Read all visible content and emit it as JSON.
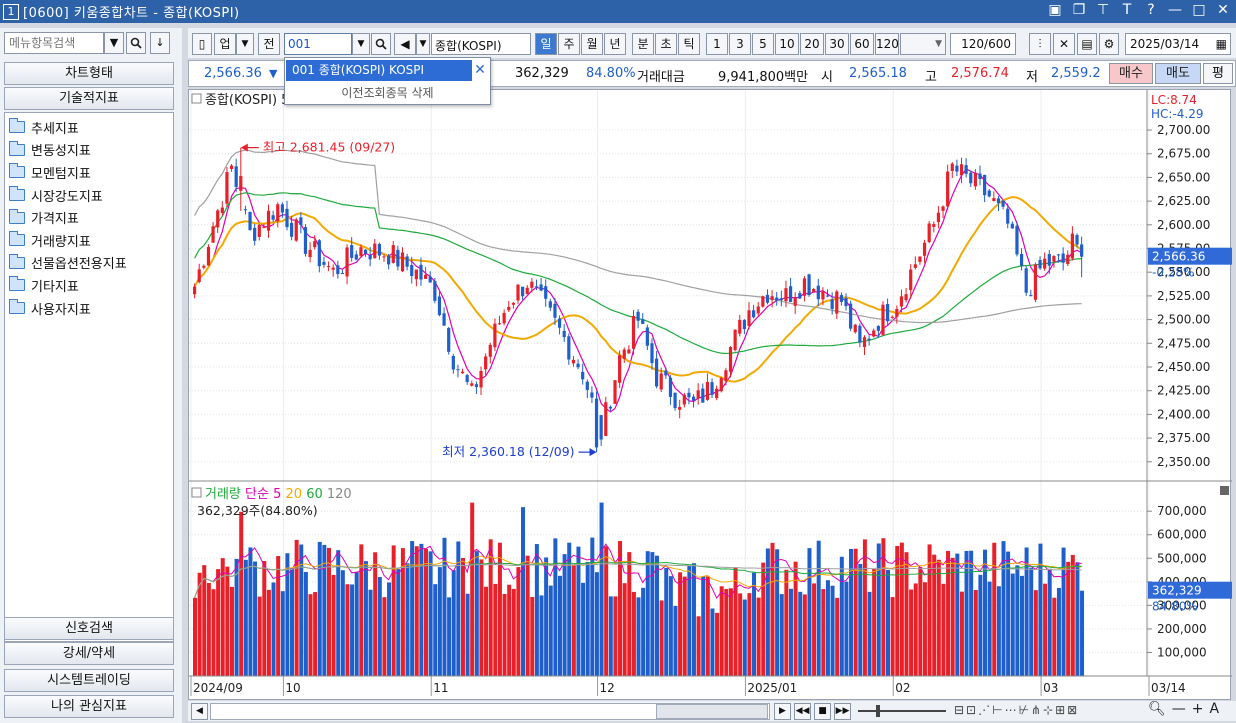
{
  "window": {
    "number": "1",
    "title": "[0600] 키움종합차트 - 종합(KOSPI)",
    "controls": [
      "layout-icon",
      "restore-icon",
      "pin-icon",
      "text-icon",
      "help-icon",
      "minimize-icon",
      "maximize-icon",
      "close-icon"
    ]
  },
  "left_panel": {
    "search_placeholder": "메뉴항목검색",
    "top_buttons": [
      "차트형태",
      "기술적지표"
    ],
    "tree": [
      "추세지표",
      "변동성지표",
      "모멘텀지표",
      "시장강도지표",
      "가격지표",
      "거래량지표",
      "선물옵션전용지표",
      "기타지표",
      "사용자지표"
    ],
    "bottom_buttons": [
      "신호검색",
      "강세/약세",
      "시스템트레이딩",
      "나의 관심지표"
    ]
  },
  "toolbar": {
    "market_type": "업",
    "all_label": "전",
    "code": "001",
    "name": "종합(KOSPI)",
    "periods": [
      "일",
      "주",
      "월",
      "년",
      "분",
      "초",
      "틱"
    ],
    "active_period": "일",
    "intervals": [
      "1",
      "3",
      "5",
      "10",
      "20",
      "30",
      "60",
      "120"
    ],
    "count": "120",
    "total": "/600",
    "date": "2025/03/14"
  },
  "dropdown": {
    "item": "001  종합(KOSPI)  KOSPI",
    "delete_label": "이전조회종목 삭제"
  },
  "quote": {
    "price": "2,566.36",
    "arrow": "▼",
    "volume": "362,329",
    "volume_ratio": "84.80%",
    "amount_label": "거래대금",
    "amount": "9,941,800백만",
    "open_label": "시",
    "open": "2,565.18",
    "high_label": "고",
    "high": "2,576.74",
    "low_label": "저",
    "low": "2,559.2",
    "buy_label": "매수",
    "sell_label": "매도",
    "eval_label": "평"
  },
  "colors": {
    "up": "#e8202a",
    "down": "#1f5fcc",
    "ma5": "#e000b4",
    "ma20": "#f2a900",
    "ma60": "#1faa3c",
    "ma120": "#a0a0a0"
  },
  "chart_data": [
    {
      "type": "candlestick",
      "title": "종합(KOSPI) 5 20 60 120",
      "axis_labels": [
        "2,700.00",
        "2,675.00",
        "2,650.00",
        "2,625.00",
        "2,600.00",
        "2,575.00",
        "2,550.00",
        "2,525.00",
        "2,500.00",
        "2,475.00",
        "2,450.00",
        "2,425.00",
        "2,400.00",
        "2,375.00",
        "2,350.00"
      ],
      "ylim": [
        2335,
        2738
      ],
      "lc_label": "LC:8.74",
      "hc_label": "HC:-4.29",
      "current_price_label": "2,566.36",
      "current_change_label": "-0.28%",
      "current_price": 2566.36,
      "high_annotation": "최고 2,681.45 (09/27)",
      "low_annotation": "최저 2,360.18 (12/09)",
      "high_value": 2681.45,
      "low_value": 2360.18,
      "anchors": [
        [
          0,
          2535
        ],
        [
          4,
          2600
        ],
        [
          8,
          2660
        ],
        [
          12,
          2590
        ],
        [
          18,
          2620
        ],
        [
          24,
          2580
        ],
        [
          30,
          2550
        ],
        [
          36,
          2575
        ],
        [
          42,
          2570
        ],
        [
          48,
          2550
        ],
        [
          52,
          2530
        ],
        [
          56,
          2460
        ],
        [
          60,
          2420
        ],
        [
          64,
          2475
        ],
        [
          68,
          2520
        ],
        [
          72,
          2540
        ],
        [
          76,
          2510
        ],
        [
          80,
          2480
        ],
        [
          84,
          2445
        ],
        [
          88,
          2380
        ],
        [
          92,
          2460
        ],
        [
          96,
          2500
        ],
        [
          100,
          2440
        ],
        [
          104,
          2420
        ],
        [
          108,
          2410
        ],
        [
          112,
          2430
        ],
        [
          116,
          2470
        ],
        [
          120,
          2510
        ],
        [
          124,
          2530
        ],
        [
          128,
          2525
        ],
        [
          132,
          2540
        ],
        [
          136,
          2530
        ],
        [
          140,
          2520
        ],
        [
          144,
          2470
        ],
        [
          148,
          2500
        ],
        [
          152,
          2520
        ],
        [
          156,
          2560
        ],
        [
          160,
          2600
        ],
        [
          164,
          2660
        ],
        [
          168,
          2645
        ],
        [
          172,
          2630
        ],
        [
          176,
          2600
        ],
        [
          180,
          2530
        ],
        [
          184,
          2560
        ],
        [
          188,
          2560
        ],
        [
          190,
          2580
        ],
        [
          192,
          2566
        ]
      ],
      "ma_series": [
        {
          "name": "5",
          "window": 5
        },
        {
          "name": "20",
          "window": 20
        },
        {
          "name": "60",
          "window": 60
        },
        {
          "name": "120",
          "window": 120
        }
      ]
    },
    {
      "type": "bar",
      "title": "거래량 단순 5 20 60 120",
      "volume_summary": "362,329주(84.80%)",
      "axis_labels": [
        "700,000",
        "600,000",
        "500,000",
        "400,000",
        "300,000",
        "200,000",
        "100,000"
      ],
      "ylim": [
        0,
        790000
      ],
      "current_volume_label": "362,329",
      "current_volume_ratio": "84.80%",
      "current_volume": 362329
    }
  ],
  "x_axis": [
    "2024/09",
    "10",
    "11",
    "12",
    "2025/01",
    "02",
    "03",
    "03/14"
  ]
}
